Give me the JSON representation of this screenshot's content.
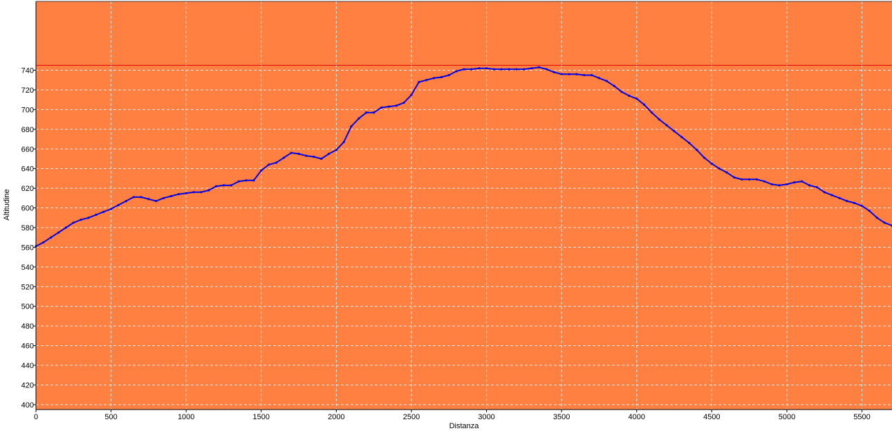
{
  "chart_data": {
    "type": "line",
    "title": "",
    "xlabel": "Distanza",
    "ylabel": "Altitudine",
    "xlim": [
      0,
      5700
    ],
    "ylim": [
      395,
      810
    ],
    "grid": true,
    "x_ticks": [
      0,
      500,
      1000,
      1500,
      2000,
      2500,
      3000,
      3500,
      4000,
      4500,
      5000,
      5500
    ],
    "y_ticks": [
      400,
      420,
      440,
      460,
      480,
      500,
      520,
      540,
      560,
      580,
      600,
      620,
      640,
      660,
      680,
      700,
      720,
      740
    ],
    "reference_line": {
      "y": 745,
      "color": "#e00000"
    },
    "colors": {
      "plot_background": "#ff8040",
      "series": "#0000e0",
      "grid": "#e8e8e8"
    },
    "series": [
      {
        "x": [
          0,
          50,
          100,
          150,
          200,
          250,
          300,
          350,
          400,
          450,
          500,
          550,
          600,
          650,
          700,
          750,
          800,
          850,
          900,
          950,
          1000,
          1050,
          1100,
          1150,
          1200,
          1250,
          1300,
          1350,
          1400,
          1450,
          1500,
          1550,
          1600,
          1650,
          1700,
          1750,
          1800,
          1850,
          1900,
          1950,
          2000,
          2050,
          2100,
          2150,
          2200,
          2250,
          2300,
          2350,
          2400,
          2450,
          2500,
          2550,
          2600,
          2650,
          2700,
          2750,
          2800,
          2850,
          2900,
          2950,
          3000,
          3050,
          3100,
          3150,
          3200,
          3250,
          3300,
          3350,
          3400,
          3450,
          3500,
          3550,
          3600,
          3650,
          3700,
          3750,
          3800,
          3850,
          3900,
          3950,
          4000,
          4050,
          4100,
          4150,
          4200,
          4250,
          4300,
          4350,
          4400,
          4450,
          4500,
          4550,
          4600,
          4650,
          4700,
          4750,
          4800,
          4850,
          4900,
          4950,
          5000,
          5050,
          5100,
          5150,
          5200,
          5250,
          5300,
          5350,
          5400,
          5450,
          5500,
          5550,
          5600,
          5650,
          5700
        ],
        "values": [
          561,
          565,
          570,
          575,
          580,
          585,
          588,
          590,
          593,
          596,
          599,
          603,
          607,
          611,
          611,
          609,
          607,
          610,
          612,
          614,
          615,
          616,
          616,
          618,
          622,
          623,
          623,
          627,
          628,
          628,
          638,
          644,
          646,
          651,
          656,
          655,
          653,
          652,
          650,
          655,
          659,
          667,
          683,
          691,
          697,
          697,
          702,
          703,
          704,
          707,
          715,
          728,
          730,
          732,
          733,
          735,
          739,
          741,
          741,
          742,
          742,
          741,
          741,
          741,
          741,
          741,
          742,
          743,
          741,
          738,
          736,
          736,
          736,
          735,
          735,
          732,
          729,
          724,
          718,
          714,
          711,
          705,
          697,
          690,
          684,
          678,
          672,
          666,
          659,
          651,
          645,
          640,
          636,
          631,
          629,
          629,
          629,
          627,
          624,
          623,
          624,
          626,
          627,
          623,
          621,
          616,
          613,
          610,
          607,
          605,
          602,
          597,
          590,
          585,
          582
        ]
      }
    ]
  }
}
